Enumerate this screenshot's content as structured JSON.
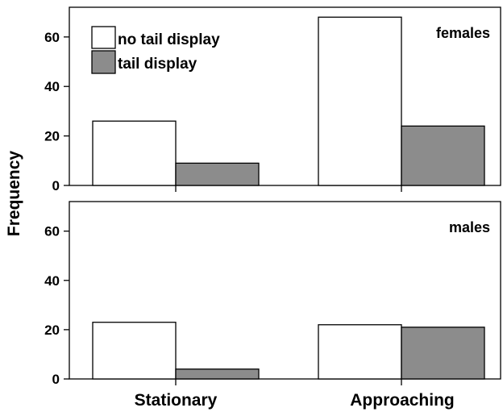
{
  "chart_data": {
    "type": "bar",
    "ylabel": "Frequency",
    "categories": [
      "Stationary",
      "Approaching"
    ],
    "ylim": [
      0,
      72
    ],
    "yticks": [
      0,
      20,
      40,
      60
    ],
    "grid": false,
    "legend": {
      "placement": "top-left",
      "panel": "females"
    },
    "series_styles": [
      {
        "name": "no tail display",
        "color": "#ffffff"
      },
      {
        "name": "tail display",
        "color": "#8c8c8c"
      }
    ],
    "panels": [
      {
        "label": "females",
        "series": [
          {
            "name": "no tail display",
            "values": [
              26,
              68
            ]
          },
          {
            "name": "tail display",
            "values": [
              9,
              24
            ]
          }
        ]
      },
      {
        "label": "males",
        "series": [
          {
            "name": "no tail display",
            "values": [
              23,
              22
            ]
          },
          {
            "name": "tail display",
            "values": [
              4,
              21
            ]
          }
        ]
      }
    ]
  }
}
